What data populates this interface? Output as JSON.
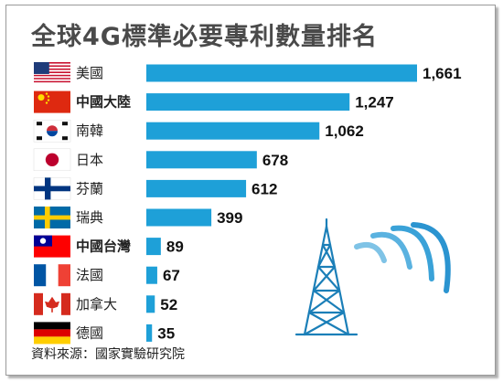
{
  "title": "全球4G標準必要專利數量排名",
  "source": "資料來源：國家實驗研究院",
  "chart_data": {
    "type": "bar",
    "orientation": "horizontal",
    "title": "全球4G標準必要專利數量排名",
    "categories": [
      "美國",
      "中國大陸",
      "南韓",
      "日本",
      "芬蘭",
      "瑞典",
      "中國台灣",
      "法國",
      "加拿大",
      "德國"
    ],
    "values": [
      1661,
      1247,
      1062,
      678,
      612,
      399,
      89,
      67,
      52,
      35
    ],
    "value_labels": [
      "1,661",
      "1,247",
      "1,062",
      "678",
      "612",
      "399",
      "89",
      "67",
      "52",
      "35"
    ],
    "flags": [
      "us-flag-icon",
      "cn-flag-icon",
      "kr-flag-icon",
      "jp-flag-icon",
      "fi-flag-icon",
      "se-flag-icon",
      "tw-flag-icon",
      "fr-flag-icon",
      "ca-flag-icon",
      "de-flag-icon"
    ],
    "bold_categories": [
      "中國大陸",
      "中國台灣"
    ],
    "bar_color": "#1ea0d8",
    "xlim": [
      0,
      1661
    ],
    "grid": false,
    "legend": "none"
  }
}
